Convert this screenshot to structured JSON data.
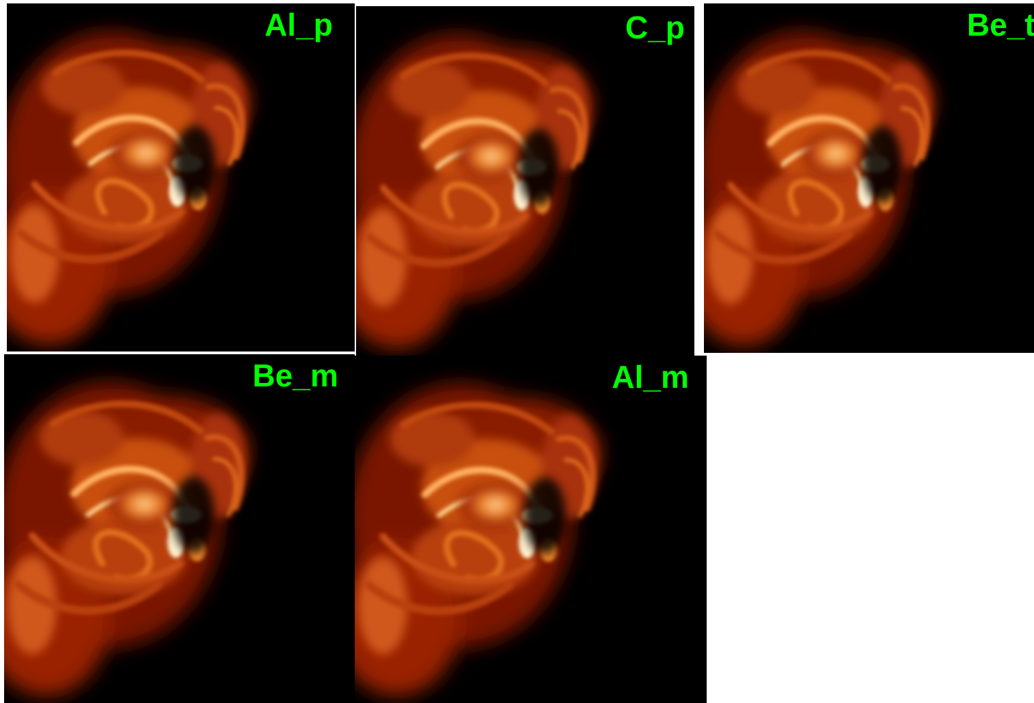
{
  "panels": [
    {
      "label": "Al_p"
    },
    {
      "label": "C_p"
    },
    {
      "label": "Be_t"
    },
    {
      "label": "Be_m"
    },
    {
      "label": "Al_m"
    }
  ],
  "colors": {
    "label": "#00ff00",
    "background": "#000000",
    "page": "#ffffff"
  }
}
